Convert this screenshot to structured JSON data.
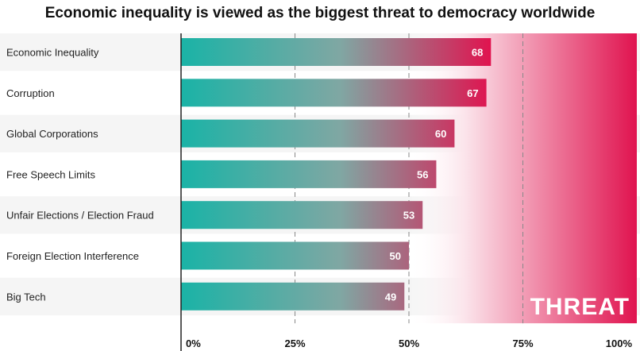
{
  "title": "Economic inequality is viewed as the biggest threat to democracy worldwide",
  "chart_data": {
    "type": "bar",
    "orientation": "horizontal",
    "title": "Economic inequality is viewed as the biggest threat to democracy worldwide",
    "categories": [
      "Economic Inequality",
      "Corruption",
      "Global Corporations",
      "Free Speech Limits",
      "Unfair Elections / Election Fraud",
      "Foreign Election Interference",
      "Big Tech"
    ],
    "values": [
      68,
      67,
      60,
      56,
      53,
      50,
      49
    ],
    "xlim": [
      0,
      100
    ],
    "ticks": [
      "0%",
      "25%",
      "50%",
      "75%",
      "100%"
    ],
    "tick_values": [
      0,
      25,
      50,
      75,
      100
    ],
    "grid": "dashed vertical at 25%, 50%, 75%",
    "background_annotation": "THREAT",
    "colors": {
      "bar_start": "#1ab3a6",
      "bar_end": "#e0134f",
      "threat_zone": "#e0134f",
      "row_band": "#f5f5f5"
    }
  }
}
